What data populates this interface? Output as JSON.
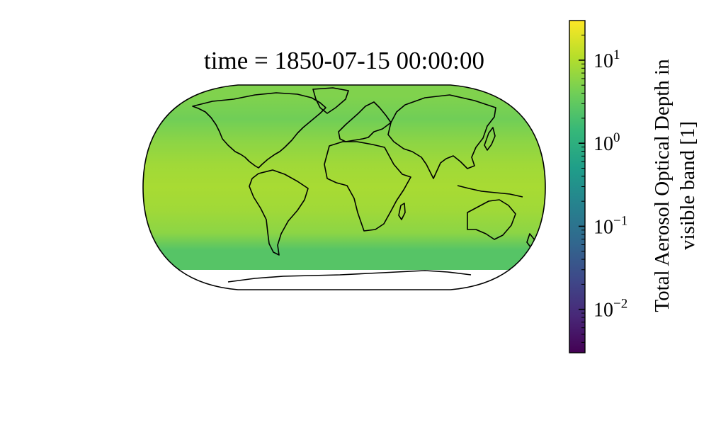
{
  "chart_data": {
    "type": "heatmap",
    "title": "time = 1850-07-15 00:00:00",
    "projection": "robinson",
    "colormap": "viridis",
    "color_scale": "log",
    "value_range": [
      0.003,
      30
    ],
    "missing_region": "Antarctica (south of ~60°S)",
    "representative_field": {
      "latitudes": [
        80,
        60,
        40,
        20,
        0,
        -20,
        -40,
        -55
      ],
      "values": [
        5,
        4,
        6,
        8,
        9,
        8,
        6,
        2.5
      ]
    },
    "colorbar": {
      "label_line1": "Total Aerosol Optical Depth in",
      "label_line2": "visible band [1]",
      "ticks": [
        {
          "value": 10,
          "base": "10",
          "exp": "1"
        },
        {
          "value": 1,
          "base": "10",
          "exp": "0"
        },
        {
          "value": 0.1,
          "base": "10",
          "exp": "−1"
        },
        {
          "value": 0.01,
          "base": "10",
          "exp": "−2"
        }
      ]
    },
    "viridis": [
      "#440154",
      "#482878",
      "#3e4989",
      "#31688e",
      "#26828e",
      "#1f9e89",
      "#35b779",
      "#6ece58",
      "#b5de2b",
      "#fde725"
    ]
  }
}
